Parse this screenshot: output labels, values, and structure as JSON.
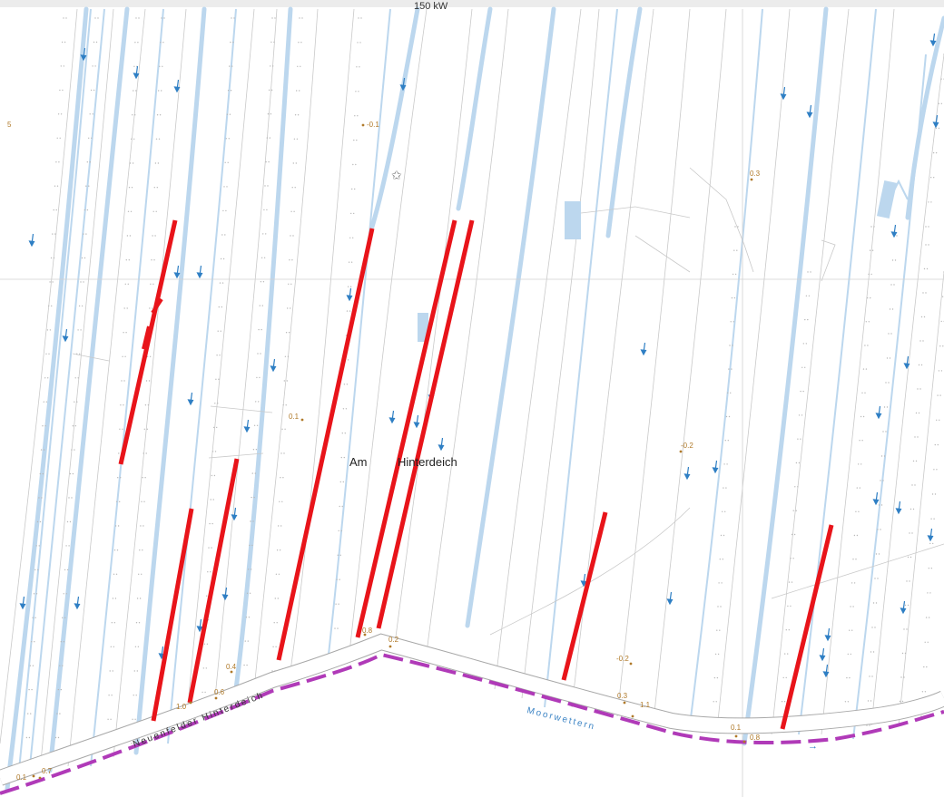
{
  "map": {
    "place_label_left": "Am",
    "place_label_right": "Hinterdeich",
    "street_label": "Neuenfelder Hinterdeich",
    "waterway_label": "Moorwettern",
    "top_label": "150 kW",
    "elevations": {
      "e1": "-0.1",
      "e2": "0.3",
      "e3": "0.1",
      "e4": "-0.2",
      "e5": "0.8",
      "e6": "0.2",
      "e7": "0.4",
      "e8": "0.6",
      "e9": "1.0",
      "e10": "-0.2",
      "e11": "0.3",
      "e12": "1.1",
      "e13": "0.1",
      "e14": "0.8",
      "e15": "0.7",
      "e16": "0.1",
      "e17": "5"
    },
    "colors": {
      "highlight": "#e8141a",
      "ditch": "#bcd7ee",
      "boundary": "#b03ab8",
      "road_casing": "#9a9a9a",
      "arrow": "#2f7fc4",
      "elevation": "#b07a2a"
    },
    "highlight_segment_count": 10
  }
}
